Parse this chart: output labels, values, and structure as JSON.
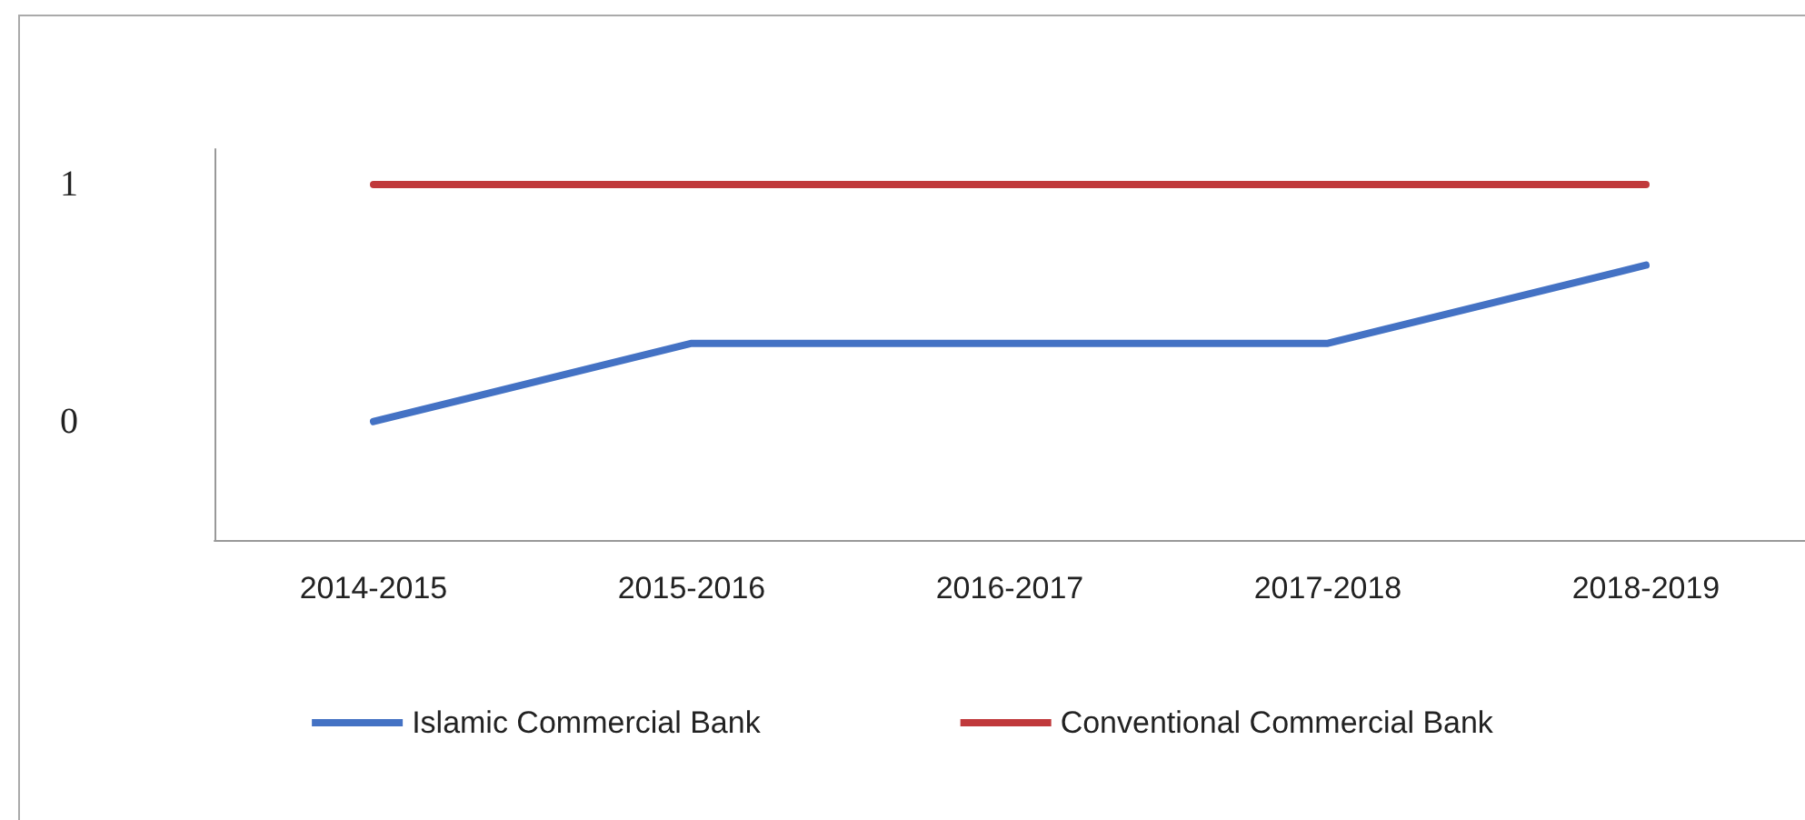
{
  "chart_data": {
    "type": "line",
    "categories": [
      "2014-2015",
      "2015-2016",
      "2016-2017",
      "2017-2018",
      "2018-2019"
    ],
    "series": [
      {
        "name": "Islamic Commercial Bank",
        "color": "#4472c4",
        "values": [
          0,
          0.33,
          0.33,
          0.33,
          0.66
        ]
      },
      {
        "name": "Conventional Commercial Bank",
        "color": "#c0393b",
        "values": [
          1,
          1,
          1,
          1,
          1
        ]
      }
    ],
    "ylim": [
      -0.5,
      1.15
    ],
    "yticks": [
      0,
      1
    ],
    "grid": false,
    "legend": "bottom",
    "marker": "none",
    "line_style": "solid"
  }
}
